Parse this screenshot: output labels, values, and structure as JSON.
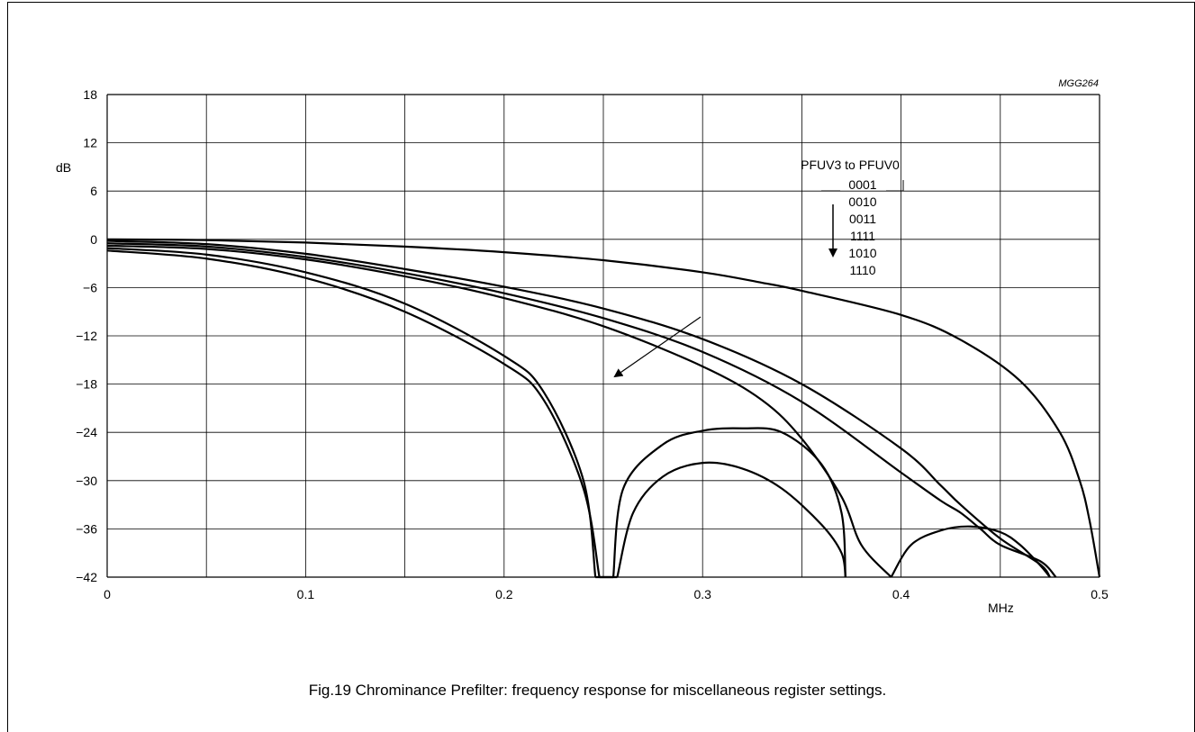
{
  "figure_id": "MGG264",
  "caption": "Fig.19  Chrominance Prefilter: frequency response for miscellaneous register settings.",
  "chart_data": {
    "type": "line",
    "title": "",
    "xlabel": "MHz",
    "ylabel": "dB",
    "xlim": [
      0,
      0.5
    ],
    "ylim": [
      -42,
      18
    ],
    "x_ticks": [
      "0",
      "0.1",
      "0.2",
      "0.3",
      "0.4",
      "0.5"
    ],
    "y_ticks": [
      "18",
      "12",
      "6",
      "0",
      "−6",
      "−12",
      "−18",
      "−24",
      "−30",
      "−36",
      "−42"
    ],
    "grid": true,
    "legend_title": "PFUV3 to PFUV0",
    "series": [
      {
        "name": "0001",
        "x": [
          0,
          0.05,
          0.1,
          0.15,
          0.2,
          0.25,
          0.3,
          0.33,
          0.35,
          0.4,
          0.43,
          0.46,
          0.48,
          0.49,
          0.495,
          0.5
        ],
        "y": [
          0,
          -0.1,
          -0.4,
          -0.9,
          -1.6,
          -2.6,
          -4.1,
          -5.4,
          -6.4,
          -9.4,
          -12.5,
          -17.6,
          -24.0,
          -30.0,
          -35.0,
          -42.0
        ]
      },
      {
        "name": "0010",
        "x": [
          0,
          0.05,
          0.1,
          0.15,
          0.2,
          0.25,
          0.3,
          0.35,
          0.4,
          0.42,
          0.43,
          0.45,
          0.47,
          0.475
        ],
        "y": [
          -0.2,
          -0.6,
          -1.8,
          -3.7,
          -5.9,
          -8.6,
          -12.4,
          -18.0,
          -26.0,
          -30.6,
          -33.0,
          -37.2,
          -40.4,
          -42.0
        ]
      },
      {
        "name": "0011",
        "x": [
          0,
          0.05,
          0.1,
          0.15,
          0.2,
          0.25,
          0.3,
          0.35,
          0.4,
          0.42,
          0.43,
          0.44,
          0.45,
          0.47,
          0.478
        ],
        "y": [
          -0.5,
          -0.9,
          -2.2,
          -4.2,
          -6.7,
          -9.8,
          -14.0,
          -20.2,
          -29.0,
          -32.5,
          -34.0,
          -36.0,
          -38.0,
          -40.0,
          -42.0
        ]
      },
      {
        "name": "1111",
        "x": [
          0,
          0.05,
          0.1,
          0.15,
          0.2,
          0.25,
          0.3,
          0.33,
          0.35,
          0.37,
          0.38,
          0.395,
          0.405,
          0.42,
          0.435,
          0.45,
          0.46,
          0.47,
          0.475
        ],
        "y": [
          -0.8,
          -1.2,
          -2.5,
          -4.6,
          -7.3,
          -10.8,
          -15.8,
          -20.0,
          -24.8,
          -32.0,
          -38.0,
          -42.0,
          -38.0,
          -36.2,
          -35.7,
          -36.4,
          -38.0,
          -40.5,
          -42.0
        ]
      },
      {
        "name": "1010",
        "x": [
          0,
          0.05,
          0.1,
          0.15,
          0.2,
          0.22,
          0.24,
          0.246,
          0.255,
          0.26,
          0.28,
          0.3,
          0.32,
          0.34,
          0.36,
          0.37,
          0.372
        ],
        "y": [
          -1.1,
          -1.9,
          -4.1,
          -8.0,
          -14.5,
          -19.0,
          -30.0,
          -42.0,
          -42.0,
          -31.0,
          -25.5,
          -23.8,
          -23.5,
          -24.0,
          -28.0,
          -34.0,
          -42.0
        ]
      },
      {
        "name": "1110",
        "x": [
          0,
          0.05,
          0.1,
          0.15,
          0.2,
          0.22,
          0.24,
          0.248,
          0.257,
          0.265,
          0.28,
          0.3,
          0.32,
          0.34,
          0.36,
          0.37,
          0.372
        ],
        "y": [
          -1.4,
          -2.4,
          -4.8,
          -9.0,
          -15.5,
          -20.0,
          -31.0,
          -42.0,
          -42.0,
          -34.0,
          -29.5,
          -27.8,
          -28.5,
          -31.0,
          -35.5,
          -39.0,
          -42.0
        ]
      }
    ],
    "annotations": [
      {
        "type": "arrow",
        "label": "direction of register settings (vertical arrow)",
        "from": [
          0.365,
          3.0
        ],
        "to": [
          0.365,
          -2.5
        ]
      },
      {
        "type": "arrow",
        "label": "direction of curve order (diagonal arrow)",
        "from": [
          0.3,
          -10.0
        ],
        "to": [
          0.255,
          -17.0
        ]
      }
    ]
  }
}
